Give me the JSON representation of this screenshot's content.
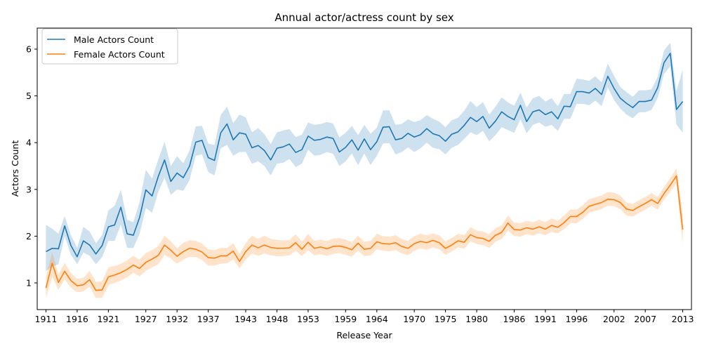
{
  "chart_data": {
    "type": "line",
    "title": "Annual actor/actress count by sex",
    "xlabel": "Release Year",
    "ylabel": "Actors Count",
    "xlim": [
      1909.6,
      2014.4
    ],
    "ylim": [
      0.43,
      6.45
    ],
    "x_ticks": [
      1911,
      1916,
      1921,
      1927,
      1932,
      1937,
      1943,
      1948,
      1953,
      1959,
      1964,
      1970,
      1975,
      1980,
      1986,
      1991,
      1996,
      2002,
      2007,
      2013
    ],
    "y_ticks": [
      1,
      2,
      3,
      4,
      5,
      6
    ],
    "grid": false,
    "legend_position": "upper-left",
    "x": [
      1911,
      1912,
      1913,
      1914,
      1915,
      1916,
      1917,
      1918,
      1919,
      1920,
      1921,
      1922,
      1923,
      1924,
      1925,
      1926,
      1927,
      1928,
      1929,
      1930,
      1931,
      1932,
      1933,
      1934,
      1935,
      1936,
      1937,
      1938,
      1939,
      1940,
      1941,
      1942,
      1943,
      1944,
      1945,
      1946,
      1947,
      1948,
      1949,
      1950,
      1951,
      1952,
      1953,
      1954,
      1955,
      1956,
      1957,
      1958,
      1959,
      1960,
      1961,
      1962,
      1963,
      1964,
      1965,
      1966,
      1967,
      1968,
      1969,
      1970,
      1971,
      1972,
      1973,
      1974,
      1975,
      1976,
      1977,
      1978,
      1979,
      1980,
      1981,
      1982,
      1983,
      1984,
      1985,
      1986,
      1987,
      1988,
      1989,
      1990,
      1991,
      1992,
      1993,
      1994,
      1995,
      1996,
      1997,
      1998,
      1999,
      2000,
      2001,
      2002,
      2003,
      2004,
      2005,
      2006,
      2007,
      2008,
      2009,
      2010,
      2011,
      2012,
      2013
    ],
    "series": [
      {
        "name": "Male Actors Count",
        "color": "#1f77b4",
        "values": [
          1.67,
          1.74,
          1.73,
          2.22,
          1.8,
          1.56,
          1.9,
          1.81,
          1.62,
          1.8,
          2.2,
          2.24,
          2.62,
          2.05,
          2.02,
          2.4,
          2.99,
          2.86,
          3.28,
          3.63,
          3.17,
          3.35,
          3.25,
          3.5,
          4.01,
          4.05,
          3.68,
          3.62,
          4.21,
          4.4,
          4.06,
          4.21,
          4.18,
          3.89,
          3.94,
          3.83,
          3.63,
          3.88,
          3.91,
          3.97,
          3.79,
          3.85,
          4.14,
          4.05,
          4.07,
          4.12,
          4.09,
          3.8,
          3.9,
          4.06,
          3.84,
          4.08,
          3.85,
          4.02,
          4.33,
          4.34,
          4.06,
          4.09,
          4.2,
          4.12,
          4.17,
          4.3,
          4.19,
          4.15,
          4.03,
          4.18,
          4.23,
          4.37,
          4.54,
          4.45,
          4.56,
          4.31,
          4.46,
          4.66,
          4.56,
          4.49,
          4.8,
          4.45,
          4.66,
          4.7,
          4.6,
          4.66,
          4.51,
          4.78,
          4.77,
          5.09,
          5.09,
          5.06,
          5.16,
          5.03,
          5.42,
          5.16,
          4.95,
          4.84,
          4.75,
          4.88,
          4.88,
          4.91,
          5.18,
          5.71,
          5.91,
          4.71,
          4.88
        ],
        "lower": [
          1.25,
          1.35,
          1.4,
          2.0,
          1.6,
          1.4,
          1.65,
          1.58,
          1.4,
          1.55,
          1.9,
          1.9,
          2.25,
          1.75,
          1.75,
          2.05,
          2.6,
          2.5,
          2.95,
          3.25,
          2.88,
          3.0,
          2.97,
          3.2,
          3.72,
          3.75,
          3.37,
          3.3,
          3.88,
          3.95,
          3.72,
          3.8,
          3.8,
          3.55,
          3.6,
          3.5,
          3.3,
          3.55,
          3.57,
          3.65,
          3.48,
          3.55,
          3.85,
          3.72,
          3.74,
          3.8,
          3.76,
          3.5,
          3.6,
          3.77,
          3.52,
          3.77,
          3.52,
          3.72,
          3.98,
          3.99,
          3.75,
          3.8,
          3.9,
          3.8,
          3.88,
          4.0,
          3.89,
          3.86,
          3.75,
          3.89,
          3.95,
          4.08,
          4.22,
          4.16,
          4.25,
          4.03,
          4.16,
          4.33,
          4.27,
          4.21,
          4.5,
          4.2,
          4.38,
          4.43,
          4.34,
          4.38,
          4.25,
          4.51,
          4.51,
          4.83,
          4.83,
          4.8,
          4.9,
          4.78,
          5.18,
          4.91,
          4.73,
          4.6,
          4.52,
          4.65,
          4.65,
          4.7,
          4.96,
          5.47,
          5.63,
          4.39,
          4.21
        ],
        "upper": [
          2.24,
          2.16,
          2.05,
          2.43,
          2.02,
          1.75,
          2.2,
          2.1,
          1.85,
          2.02,
          2.55,
          2.65,
          2.99,
          2.35,
          2.3,
          2.73,
          3.42,
          3.23,
          3.64,
          4.02,
          3.5,
          3.71,
          3.56,
          3.83,
          4.35,
          4.36,
          3.98,
          3.95,
          4.59,
          4.77,
          4.42,
          4.6,
          4.54,
          4.22,
          4.31,
          4.18,
          3.97,
          4.22,
          4.26,
          4.29,
          4.12,
          4.17,
          4.43,
          4.38,
          4.4,
          4.44,
          4.41,
          4.11,
          4.21,
          4.36,
          4.16,
          4.38,
          4.19,
          4.32,
          4.69,
          4.69,
          4.38,
          4.4,
          4.5,
          4.44,
          4.48,
          4.59,
          4.51,
          4.45,
          4.33,
          4.48,
          4.53,
          4.68,
          4.89,
          4.76,
          4.87,
          4.6,
          4.77,
          4.97,
          4.86,
          4.79,
          5.07,
          4.75,
          4.95,
          5.0,
          4.88,
          4.95,
          4.78,
          5.04,
          5.04,
          5.37,
          5.35,
          5.32,
          5.42,
          5.29,
          5.69,
          5.43,
          5.19,
          5.08,
          4.98,
          5.12,
          5.12,
          5.14,
          5.41,
          5.97,
          6.14,
          5.1,
          5.56
        ]
      },
      {
        "name": "Female Actors Count",
        "color": "#ff7f0e",
        "values": [
          0.89,
          1.42,
          1.01,
          1.25,
          1.05,
          0.94,
          0.96,
          1.07,
          0.84,
          0.85,
          1.13,
          1.17,
          1.22,
          1.29,
          1.38,
          1.31,
          1.44,
          1.51,
          1.59,
          1.81,
          1.7,
          1.57,
          1.67,
          1.74,
          1.72,
          1.66,
          1.54,
          1.53,
          1.58,
          1.58,
          1.68,
          1.46,
          1.67,
          1.81,
          1.75,
          1.81,
          1.76,
          1.74,
          1.74,
          1.75,
          1.86,
          1.72,
          1.87,
          1.74,
          1.77,
          1.73,
          1.78,
          1.79,
          1.76,
          1.71,
          1.85,
          1.72,
          1.74,
          1.88,
          1.84,
          1.83,
          1.86,
          1.78,
          1.74,
          1.84,
          1.89,
          1.86,
          1.91,
          1.86,
          1.74,
          1.81,
          1.9,
          1.87,
          2.03,
          1.97,
          1.95,
          1.89,
          2.02,
          2.08,
          2.28,
          2.14,
          2.13,
          2.18,
          2.15,
          2.2,
          2.15,
          2.23,
          2.19,
          2.29,
          2.42,
          2.42,
          2.51,
          2.64,
          2.68,
          2.72,
          2.79,
          2.78,
          2.72,
          2.58,
          2.55,
          2.63,
          2.7,
          2.78,
          2.7,
          2.91,
          3.09,
          3.29,
          2.14
        ],
        "lower": [
          0.67,
          1.13,
          0.85,
          1.08,
          0.9,
          0.8,
          0.82,
          0.92,
          0.68,
          0.68,
          0.95,
          1.0,
          1.05,
          1.12,
          1.22,
          1.14,
          1.26,
          1.33,
          1.4,
          1.6,
          1.52,
          1.41,
          1.5,
          1.56,
          1.55,
          1.49,
          1.37,
          1.37,
          1.41,
          1.42,
          1.5,
          1.31,
          1.5,
          1.63,
          1.58,
          1.63,
          1.59,
          1.57,
          1.57,
          1.59,
          1.69,
          1.57,
          1.7,
          1.59,
          1.61,
          1.58,
          1.62,
          1.64,
          1.6,
          1.56,
          1.69,
          1.57,
          1.59,
          1.72,
          1.69,
          1.68,
          1.7,
          1.63,
          1.59,
          1.69,
          1.74,
          1.71,
          1.76,
          1.72,
          1.6,
          1.67,
          1.76,
          1.73,
          1.89,
          1.83,
          1.81,
          1.75,
          1.88,
          1.94,
          2.12,
          2.0,
          1.99,
          2.04,
          2.01,
          2.06,
          2.02,
          2.09,
          2.06,
          2.15,
          2.28,
          2.28,
          2.37,
          2.5,
          2.54,
          2.58,
          2.65,
          2.64,
          2.58,
          2.44,
          2.42,
          2.5,
          2.57,
          2.65,
          2.57,
          2.78,
          2.95,
          3.13,
          1.82
        ],
        "upper": [
          1.13,
          1.66,
          1.18,
          1.43,
          1.21,
          1.09,
          1.11,
          1.26,
          1.02,
          1.04,
          1.33,
          1.36,
          1.41,
          1.48,
          1.58,
          1.5,
          1.64,
          1.7,
          1.79,
          2.01,
          1.89,
          1.74,
          1.86,
          1.91,
          1.9,
          1.84,
          1.72,
          1.7,
          1.75,
          1.75,
          1.85,
          1.62,
          1.85,
          2.01,
          1.94,
          2.01,
          1.94,
          1.92,
          1.91,
          1.92,
          2.04,
          1.88,
          2.05,
          1.9,
          1.93,
          1.89,
          1.95,
          1.96,
          1.93,
          1.87,
          2.01,
          1.88,
          1.9,
          2.05,
          2.0,
          1.99,
          2.02,
          1.94,
          1.9,
          2.0,
          2.05,
          2.02,
          2.06,
          2.02,
          1.89,
          1.96,
          2.05,
          2.02,
          2.19,
          2.12,
          2.1,
          2.04,
          2.17,
          2.23,
          2.44,
          2.29,
          2.28,
          2.33,
          2.3,
          2.35,
          2.3,
          2.38,
          2.33,
          2.44,
          2.57,
          2.57,
          2.66,
          2.79,
          2.83,
          2.87,
          2.94,
          2.93,
          2.87,
          2.72,
          2.69,
          2.77,
          2.84,
          2.92,
          2.84,
          3.05,
          3.24,
          3.45,
          2.47
        ]
      }
    ]
  }
}
